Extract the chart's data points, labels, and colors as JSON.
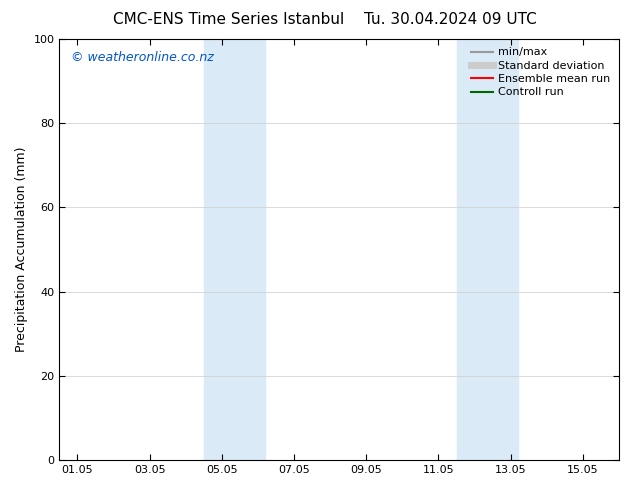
{
  "title_left": "CMC-ENS Time Series Istanbul",
  "title_right": "Tu. 30.04.2024 09 UTC",
  "ylabel": "Precipitation Accumulation (mm)",
  "ylim": [
    0,
    100
  ],
  "yticks": [
    0,
    20,
    40,
    60,
    80,
    100
  ],
  "xtick_labels": [
    "01.05",
    "03.05",
    "05.05",
    "07.05",
    "09.05",
    "11.05",
    "13.05",
    "15.05"
  ],
  "xtick_positions": [
    0,
    2,
    4,
    6,
    8,
    10,
    12,
    14
  ],
  "xlim": [
    -0.5,
    15.0
  ],
  "shaded_regions": [
    {
      "x_start": 3.5,
      "x_end": 5.2,
      "color": "#daeaf7"
    },
    {
      "x_start": 10.5,
      "x_end": 12.2,
      "color": "#daeaf7"
    }
  ],
  "watermark_text": "© weatheronline.co.nz",
  "watermark_color": "#0055cc",
  "legend_items": [
    {
      "label": "min/max",
      "color": "#999999",
      "lw": 1.5
    },
    {
      "label": "Standard deviation",
      "color": "#cccccc",
      "lw": 5
    },
    {
      "label": "Ensemble mean run",
      "color": "#ff0000",
      "lw": 1.5
    },
    {
      "label": "Controll run",
      "color": "#006600",
      "lw": 1.5
    }
  ],
  "bg_color": "#ffffff",
  "plot_bg_color": "#ffffff",
  "border_color": "#000000",
  "title_fontsize": 11,
  "axis_label_fontsize": 9,
  "tick_fontsize": 8,
  "watermark_fontsize": 9,
  "legend_fontsize": 8
}
